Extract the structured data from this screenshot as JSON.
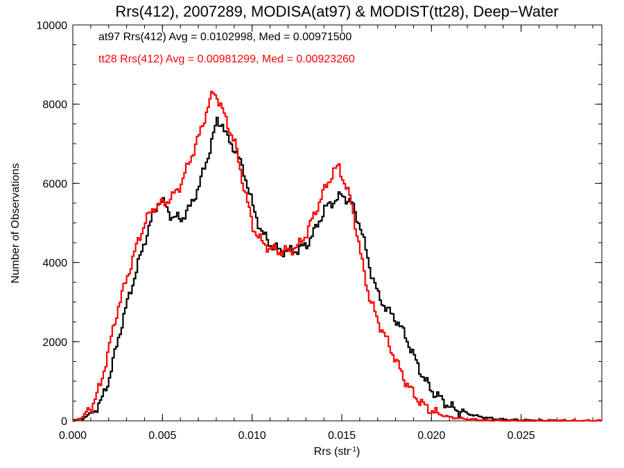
{
  "chart_data": {
    "type": "line",
    "title": "Rrs(412), 2007289, MODISA(at97) & MODIST(tt28), Deep−Water",
    "xlabel": "Rrs (str",
    "xlabel_sup": "-1",
    "xlabel_close": ")",
    "ylabel": "Number of Observations",
    "xlim": [
      0.0,
      0.0295
    ],
    "ylim": [
      0,
      10000
    ],
    "x_ticks": [
      0.0,
      0.005,
      0.01,
      0.015,
      0.02,
      0.025
    ],
    "x_tick_labels": [
      "0.000",
      "0.005",
      "0.010",
      "0.015",
      "0.020",
      "0.025"
    ],
    "y_ticks": [
      0,
      2000,
      4000,
      6000,
      8000,
      10000
    ],
    "y_tick_labels": [
      "0",
      "2000",
      "4000",
      "6000",
      "8000",
      "10000"
    ],
    "step": "histogram",
    "series": [
      {
        "name": "at97 Rrs(412) Avg = 0.0102998, Med = 0.00971500",
        "color": "#000000",
        "points": [
          [
            0.0,
            0
          ],
          [
            0.0005,
            60
          ],
          [
            0.001,
            200
          ],
          [
            0.0015,
            450
          ],
          [
            0.002,
            1100
          ],
          [
            0.0025,
            2100
          ],
          [
            0.003,
            3000
          ],
          [
            0.0035,
            3800
          ],
          [
            0.004,
            4600
          ],
          [
            0.0045,
            5300
          ],
          [
            0.0048,
            5580
          ],
          [
            0.005,
            5500
          ],
          [
            0.0055,
            5150
          ],
          [
            0.006,
            5100
          ],
          [
            0.0065,
            5400
          ],
          [
            0.007,
            5950
          ],
          [
            0.0075,
            6700
          ],
          [
            0.008,
            7580
          ],
          [
            0.0083,
            7500
          ],
          [
            0.0085,
            7200
          ],
          [
            0.009,
            6850
          ],
          [
            0.0095,
            6300
          ],
          [
            0.01,
            5400
          ],
          [
            0.0105,
            4750
          ],
          [
            0.011,
            4450
          ],
          [
            0.0115,
            4300
          ],
          [
            0.012,
            4280
          ],
          [
            0.0125,
            4320
          ],
          [
            0.013,
            4450
          ],
          [
            0.0135,
            4850
          ],
          [
            0.014,
            5350
          ],
          [
            0.0145,
            5550
          ],
          [
            0.015,
            5700
          ],
          [
            0.0155,
            5500
          ],
          [
            0.016,
            4900
          ],
          [
            0.0165,
            3900
          ],
          [
            0.017,
            3150
          ],
          [
            0.0175,
            2800
          ],
          [
            0.018,
            2550
          ],
          [
            0.0185,
            2150
          ],
          [
            0.019,
            1600
          ],
          [
            0.0195,
            1100
          ],
          [
            0.02,
            750
          ],
          [
            0.0205,
            550
          ],
          [
            0.021,
            350
          ],
          [
            0.0215,
            250
          ],
          [
            0.022,
            180
          ],
          [
            0.0225,
            120
          ],
          [
            0.023,
            80
          ],
          [
            0.0235,
            50
          ],
          [
            0.024,
            30
          ],
          [
            0.025,
            15
          ],
          [
            0.026,
            5
          ],
          [
            0.0275,
            0
          ]
        ]
      },
      {
        "name": "tt28 Rrs(412) Avg = 0.00981299, Med = 0.00923260",
        "color": "#ff0000",
        "points": [
          [
            0.0,
            0
          ],
          [
            0.0005,
            100
          ],
          [
            0.001,
            350
          ],
          [
            0.0015,
            900
          ],
          [
            0.002,
            1900
          ],
          [
            0.0025,
            2900
          ],
          [
            0.003,
            3650
          ],
          [
            0.0035,
            4400
          ],
          [
            0.004,
            5050
          ],
          [
            0.0045,
            5400
          ],
          [
            0.005,
            5500
          ],
          [
            0.0055,
            5650
          ],
          [
            0.006,
            6000
          ],
          [
            0.0065,
            6600
          ],
          [
            0.007,
            7200
          ],
          [
            0.0075,
            7950
          ],
          [
            0.0078,
            8300
          ],
          [
            0.008,
            8200
          ],
          [
            0.0085,
            7600
          ],
          [
            0.009,
            7000
          ],
          [
            0.0095,
            5900
          ],
          [
            0.01,
            4900
          ],
          [
            0.0105,
            4500
          ],
          [
            0.011,
            4350
          ],
          [
            0.0115,
            4280
          ],
          [
            0.012,
            4300
          ],
          [
            0.0125,
            4400
          ],
          [
            0.013,
            4750
          ],
          [
            0.0135,
            5300
          ],
          [
            0.014,
            5850
          ],
          [
            0.0145,
            6300
          ],
          [
            0.0148,
            6420
          ],
          [
            0.015,
            6150
          ],
          [
            0.0155,
            5500
          ],
          [
            0.016,
            4200
          ],
          [
            0.0165,
            3100
          ],
          [
            0.017,
            2500
          ],
          [
            0.0175,
            2000
          ],
          [
            0.018,
            1500
          ],
          [
            0.0185,
            1000
          ],
          [
            0.019,
            650
          ],
          [
            0.0195,
            400
          ],
          [
            0.02,
            250
          ],
          [
            0.0205,
            150
          ],
          [
            0.021,
            90
          ],
          [
            0.022,
            40
          ],
          [
            0.023,
            15
          ],
          [
            0.024,
            5
          ],
          [
            0.0255,
            0
          ],
          [
            0.0295,
            0
          ]
        ]
      }
    ]
  }
}
